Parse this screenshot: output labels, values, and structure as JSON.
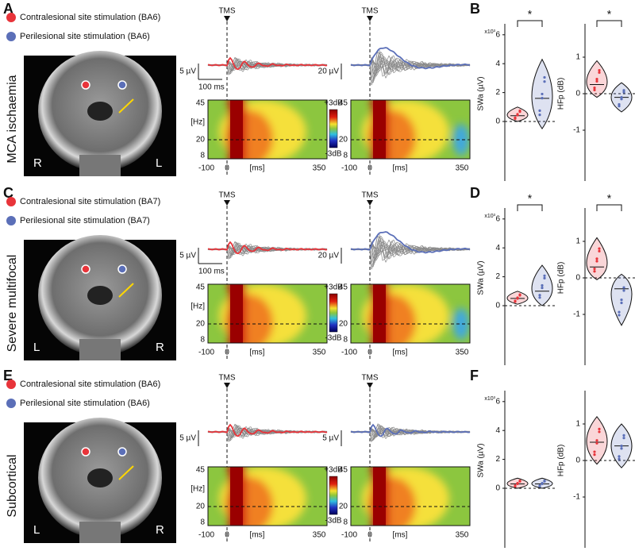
{
  "rows": [
    {
      "panel": "A",
      "condition": "MCA ischaemia",
      "legend": [
        "Contralesional site stimulation (BA6)",
        "Perilesional site stimulation (BA6)"
      ],
      "mri_labels": [
        "R",
        "L"
      ],
      "eeg_scales": [
        {
          "amplitude": "5 µV",
          "time": "100 ms"
        },
        {
          "amplitude": "20 µV"
        }
      ],
      "stats": {
        "panel": "B",
        "significance": [
          "*",
          "*"
        ],
        "swa": {
          "medians": [
            0.4,
            1.6
          ],
          "ranges": [
            [
              0,
              1
            ],
            [
              -0.5,
              4.3
            ]
          ]
        },
        "hfp": {
          "medians": [
            0.25,
            -0.1
          ],
          "ranges": [
            [
              -0.1,
              0.9
            ],
            [
              -0.5,
              0.3
            ]
          ]
        }
      }
    },
    {
      "panel": "C",
      "condition": "Severe multifocal",
      "legend": [
        "Contralesional site stimulation (BA7)",
        "Perilesional site stimulation (BA7)"
      ],
      "mri_labels": [
        "L",
        "R"
      ],
      "eeg_scales": [
        {
          "amplitude": "5 µV",
          "time": "100 ms"
        },
        {
          "amplitude": "20 µV"
        }
      ],
      "stats": {
        "panel": "D",
        "significance": [
          "*",
          "*"
        ],
        "swa": {
          "medians": [
            0.5,
            1.0
          ],
          "ranges": [
            [
              0.1,
              1
            ],
            [
              0,
              2.8
            ]
          ]
        },
        "hfp": {
          "medians": [
            0.3,
            -0.3
          ],
          "ranges": [
            [
              -0.05,
              1.1
            ],
            [
              -1.3,
              0.1
            ]
          ]
        }
      }
    },
    {
      "panel": "E",
      "condition": "Subcortical",
      "legend": [
        "Contralesional site stimulation (BA6)",
        "Perilesional site stimulation (BA6)"
      ],
      "mri_labels": [
        "L",
        "R"
      ],
      "eeg_scales": [
        {
          "amplitude": "5 µV"
        },
        {
          "amplitude": "5 µV"
        }
      ],
      "stats": {
        "panel": "F",
        "significance": [],
        "swa": {
          "medians": [
            0.3,
            0.3
          ],
          "ranges": [
            [
              0,
              0.7
            ],
            [
              0,
              0.7
            ]
          ]
        },
        "hfp": {
          "medians": [
            0.5,
            0.4
          ],
          "ranges": [
            [
              -0.1,
              1.2
            ],
            [
              -0.2,
              1.0
            ]
          ]
        }
      }
    }
  ],
  "eeg": {
    "marker": "TMS"
  },
  "spectrogram": {
    "yticks": [
      45,
      20,
      8
    ],
    "ylabel": "[Hz]",
    "xticks": [
      -100,
      0,
      350
    ],
    "xlabel": "[ms]",
    "colorbar": [
      "+3dB",
      "-3dB"
    ]
  },
  "violins": {
    "swa": {
      "label": "SWa (µV)",
      "scale": "x10³",
      "ticks": [
        6,
        4,
        2,
        0
      ]
    },
    "hfp": {
      "label": "HFp (dB)",
      "ticks": [
        1,
        0,
        -1
      ]
    },
    "colors": [
      "#e8343a",
      "#5b6fb8"
    ]
  }
}
